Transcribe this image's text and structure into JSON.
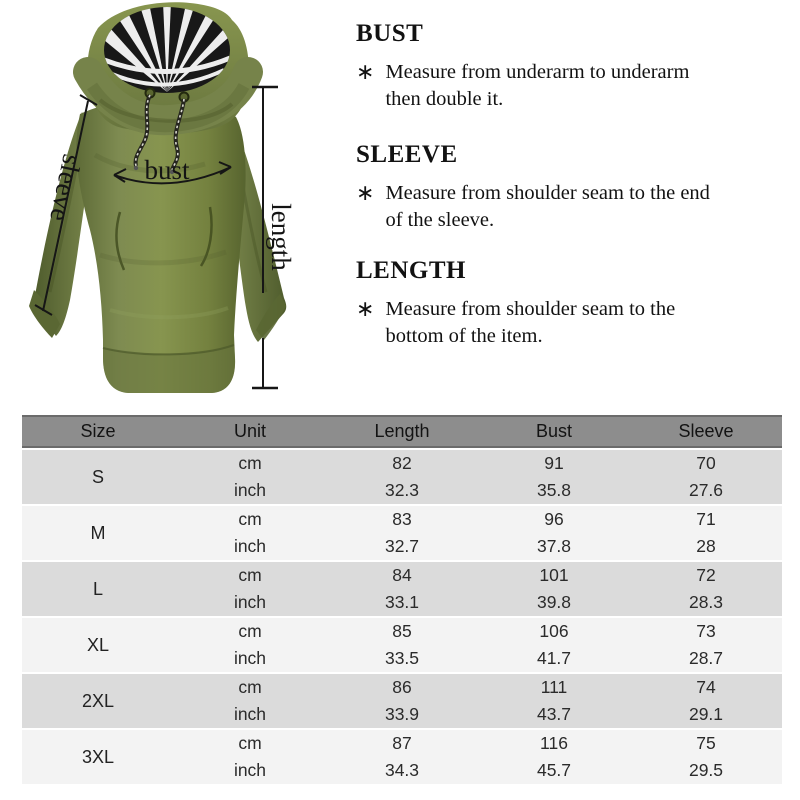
{
  "product_diagram": {
    "annotations": {
      "sleeve": "sleeve",
      "bust": "bust",
      "length": "length"
    },
    "colors": {
      "hoodie_green": "#76834a",
      "hoodie_dark": "#505d2e",
      "hoodie_light": "#8b9955",
      "lining_black": "#181818",
      "lining_white": "#ededed",
      "annotation_line": "#161616"
    }
  },
  "measure_guide": {
    "sections": [
      {
        "title": "BUST",
        "bullet": "∗",
        "lines": [
          "Measure from underarm to underarm",
          "then double it."
        ]
      },
      {
        "title": "SLEEVE",
        "bullet": "∗",
        "lines": [
          "Measure from shoulder seam to the end",
          "of the sleeve."
        ]
      },
      {
        "title": "LENGTH",
        "bullet": "∗",
        "lines": [
          "Measure from shoulder seam to the",
          "bottom of the item."
        ]
      }
    ]
  },
  "size_chart": {
    "headers": [
      "Size",
      "Unit",
      "Length",
      "Bust",
      "Sleeve"
    ],
    "unit_labels": [
      "cm",
      "inch"
    ],
    "rows": [
      {
        "size": "S",
        "cm": [
          "82",
          "91",
          "70"
        ],
        "inch": [
          "32.3",
          "35.8",
          "27.6"
        ]
      },
      {
        "size": "M",
        "cm": [
          "83",
          "96",
          "71"
        ],
        "inch": [
          "32.7",
          "37.8",
          "28"
        ]
      },
      {
        "size": "L",
        "cm": [
          "84",
          "101",
          "72"
        ],
        "inch": [
          "33.1",
          "39.8",
          "28.3"
        ]
      },
      {
        "size": "XL",
        "cm": [
          "85",
          "106",
          "73"
        ],
        "inch": [
          "33.5",
          "41.7",
          "28.7"
        ]
      },
      {
        "size": "2XL",
        "cm": [
          "86",
          "111",
          "74"
        ],
        "inch": [
          "33.9",
          "43.7",
          "29.1"
        ]
      },
      {
        "size": "3XL",
        "cm": [
          "87",
          "116",
          "75"
        ],
        "inch": [
          "34.3",
          "45.7",
          "29.5"
        ]
      }
    ],
    "colors": {
      "header_bg": "#8d8d8d",
      "header_border": "#6b6b6b",
      "row_gray": "#dbdbdb",
      "row_light": "#f3f3f3"
    }
  }
}
